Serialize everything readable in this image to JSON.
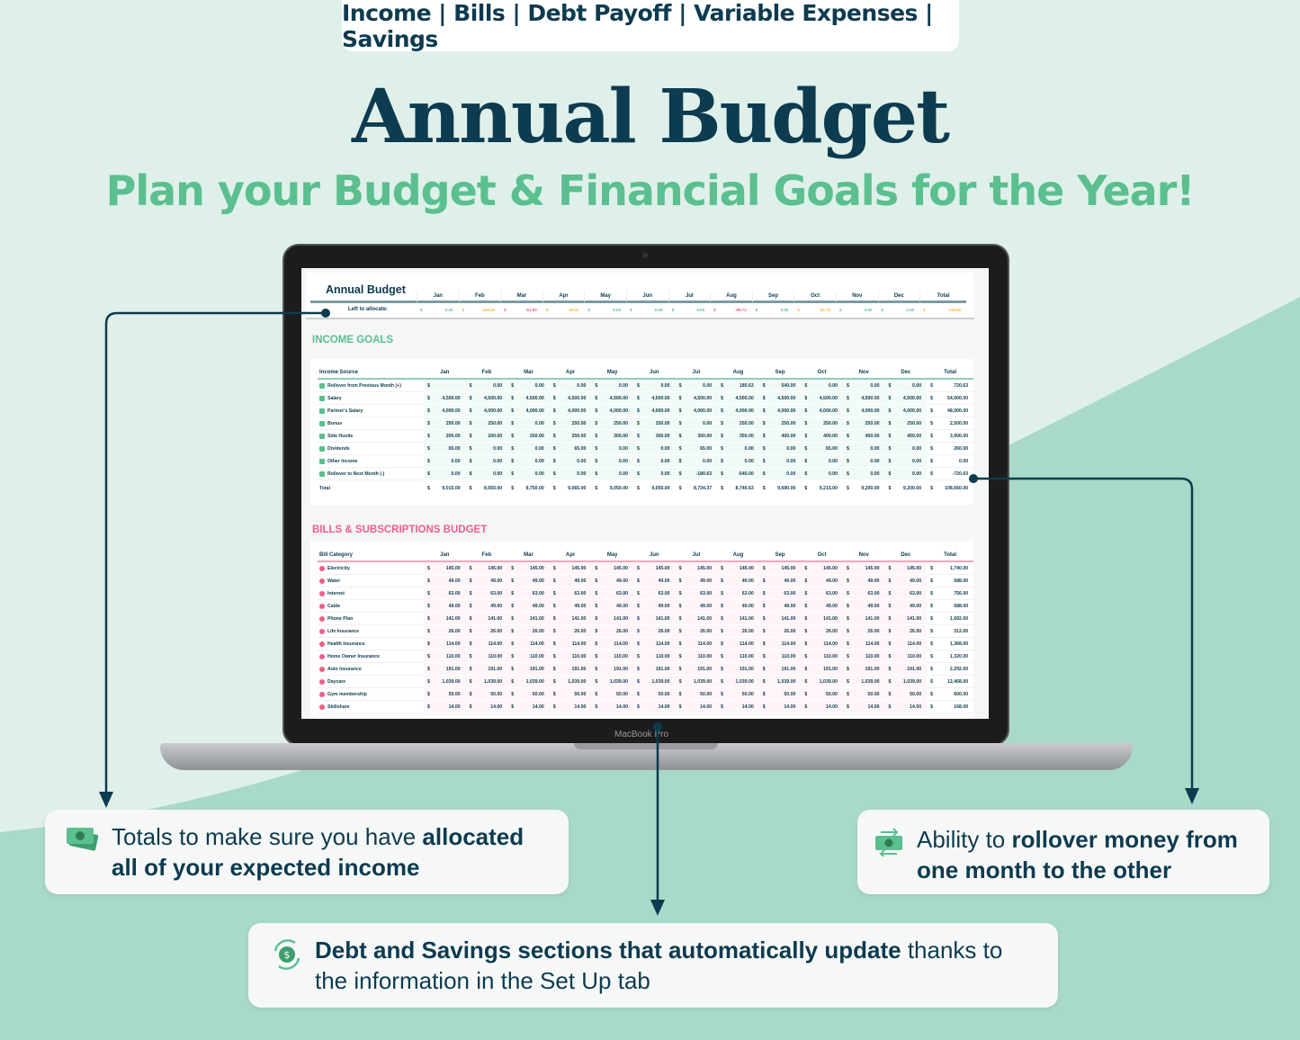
{
  "colors": {
    "navy": "#0d3b4f",
    "green": "#5bbf8f",
    "pink": "#ee5f86",
    "yellow": "#f2b632",
    "mint_bg": "#dff0ea",
    "mint_dark": "#a9d9c9"
  },
  "header": {
    "sections": "Income | Bills | Debt Payoff | Variable Expenses | Savings",
    "title": "Annual Budget",
    "subtitle": "Plan your Budget & Financial Goals for the Year!"
  },
  "laptop": {
    "brand": "MacBook Pro"
  },
  "sheet": {
    "title": "Annual Budget",
    "months": [
      "Jan",
      "Feb",
      "Mar",
      "Apr",
      "May",
      "Jun",
      "Jul",
      "Aug",
      "Sep",
      "Oct",
      "Nov",
      "Dec"
    ],
    "total_label": "Total",
    "currency": "$",
    "left_to_allocate": {
      "label": "Left to allocate:",
      "values": [
        "0.00",
        "194.20",
        "-51.80",
        "19.20",
        "0.00",
        "0.00",
        "0.00",
        "-89.74",
        "0.00",
        "62.74",
        "0.00",
        "0.00"
      ],
      "total": "134.60"
    },
    "income": {
      "heading": "INCOME GOALS",
      "col_label": "Income Source",
      "rows": [
        {
          "label": "Rollover from Previous Month (+)",
          "icon": "rollover-icon",
          "values": [
            "",
            "0.00",
            "0.00",
            "0.00",
            "0.00",
            "0.00",
            "0.00",
            "180.63",
            "540.00",
            "0.00",
            "0.00",
            "0.00"
          ],
          "total": "720.63"
        },
        {
          "label": "Salary",
          "icon": "briefcase-icon",
          "values": [
            "4,500.00",
            "4,500.00",
            "4,500.00",
            "4,500.00",
            "4,500.00",
            "4,500.00",
            "4,500.00",
            "4,500.00",
            "4,500.00",
            "4,500.00",
            "4,500.00",
            "4,500.00"
          ],
          "total": "54,000.00"
        },
        {
          "label": "Partner's Salary",
          "icon": "briefcase-icon",
          "values": [
            "4,000.00",
            "4,000.00",
            "4,000.00",
            "4,000.00",
            "4,000.00",
            "4,000.00",
            "4,000.00",
            "4,000.00",
            "4,000.00",
            "4,000.00",
            "4,000.00",
            "4,000.00"
          ],
          "total": "48,000.00"
        },
        {
          "label": "Bonus",
          "icon": "money-bag-icon",
          "values": [
            "250.00",
            "250.00",
            "0.00",
            "250.00",
            "250.00",
            "250.00",
            "0.00",
            "250.00",
            "250.00",
            "250.00",
            "250.00",
            "250.00"
          ],
          "total": "2,500.00"
        },
        {
          "label": "Side Hustle",
          "icon": "piggy-bank-icon",
          "values": [
            "200.00",
            "200.00",
            "250.00",
            "250.00",
            "300.00",
            "300.00",
            "350.00",
            "350.00",
            "400.00",
            "400.00",
            "450.00",
            "450.00"
          ],
          "total": "3,900.00"
        },
        {
          "label": "Dividends",
          "icon": "pie-chart-icon",
          "values": [
            "65.00",
            "0.00",
            "0.00",
            "65.00",
            "0.00",
            "0.00",
            "65.00",
            "0.00",
            "0.00",
            "65.00",
            "0.00",
            "0.00"
          ],
          "total": "260.00"
        },
        {
          "label": "Other Income",
          "icon": "cash-register-icon",
          "values": [
            "0.00",
            "0.00",
            "0.00",
            "0.00",
            "0.00",
            "0.00",
            "0.00",
            "0.00",
            "0.00",
            "0.00",
            "0.00",
            "0.00"
          ],
          "total": "0.00"
        },
        {
          "label": "Rollover to Next Month (-)",
          "icon": "rollover-icon",
          "values": [
            "0.00",
            "0.00",
            "0.00",
            "0.00",
            "0.00",
            "0.00",
            "-180.63",
            "-540.00",
            "0.00",
            "0.00",
            "0.00",
            "0.00"
          ],
          "total": "-720.63"
        }
      ],
      "total_row": {
        "label": "Total",
        "values": [
          "9,015.00",
          "8,950.00",
          "8,750.00",
          "9,065.00",
          "9,050.00",
          "9,050.00",
          "8,734.37",
          "8,740.63",
          "9,690.00",
          "9,215.00",
          "9,200.00",
          "9,200.00"
        ],
        "total": "108,660.00"
      }
    },
    "bills": {
      "heading": "BILLS & SUBSCRIPTIONS BUDGET",
      "col_label": "Bill Category",
      "rows": [
        {
          "label": "Electricity",
          "icon": "lightbulb-icon",
          "values": [
            "145.00",
            "145.00",
            "145.00",
            "145.00",
            "145.00",
            "145.00",
            "145.00",
            "145.00",
            "145.00",
            "145.00",
            "145.00",
            "145.00"
          ],
          "total": "1,740.00"
        },
        {
          "label": "Water",
          "icon": "water-drop-icon",
          "values": [
            "49.00",
            "49.00",
            "49.00",
            "49.00",
            "49.00",
            "49.00",
            "49.00",
            "49.00",
            "49.00",
            "49.00",
            "49.00",
            "49.00"
          ],
          "total": "588.00"
        },
        {
          "label": "Internet",
          "icon": "wifi-icon",
          "values": [
            "63.00",
            "63.00",
            "63.00",
            "63.00",
            "63.00",
            "63.00",
            "63.00",
            "63.00",
            "63.00",
            "63.00",
            "63.00",
            "63.00"
          ],
          "total": "756.00"
        },
        {
          "label": "Cable",
          "icon": "tv-icon",
          "values": [
            "49.00",
            "49.00",
            "49.00",
            "49.00",
            "49.00",
            "49.00",
            "49.00",
            "49.00",
            "49.00",
            "49.00",
            "49.00",
            "49.00"
          ],
          "total": "588.00"
        },
        {
          "label": "Phone Plan",
          "icon": "phone-icon",
          "values": [
            "141.00",
            "141.00",
            "141.00",
            "141.00",
            "141.00",
            "141.00",
            "141.00",
            "141.00",
            "141.00",
            "141.00",
            "141.00",
            "141.00"
          ],
          "total": "1,692.00"
        },
        {
          "label": "Life Insurance",
          "icon": "shield-icon",
          "values": [
            "26.00",
            "26.00",
            "26.00",
            "26.00",
            "26.00",
            "26.00",
            "26.00",
            "26.00",
            "26.00",
            "26.00",
            "26.00",
            "26.00"
          ],
          "total": "312.00"
        },
        {
          "label": "Health Insurance",
          "icon": "shield-icon",
          "values": [
            "114.00",
            "114.00",
            "114.00",
            "114.00",
            "114.00",
            "114.00",
            "114.00",
            "114.00",
            "114.00",
            "114.00",
            "114.00",
            "114.00"
          ],
          "total": "1,368.00"
        },
        {
          "label": "Home Owner Insurance",
          "icon": "shield-icon",
          "values": [
            "110.00",
            "110.00",
            "110.00",
            "110.00",
            "110.00",
            "110.00",
            "110.00",
            "110.00",
            "110.00",
            "110.00",
            "110.00",
            "110.00"
          ],
          "total": "1,320.00"
        },
        {
          "label": "Auto Insurance",
          "icon": "shield-icon",
          "values": [
            "191.00",
            "191.00",
            "191.00",
            "191.00",
            "191.00",
            "191.00",
            "191.00",
            "191.00",
            "191.00",
            "191.00",
            "191.00",
            "191.00"
          ],
          "total": "2,292.00"
        },
        {
          "label": "Daycare",
          "icon": "stroller-icon",
          "values": [
            "1,039.00",
            "1,039.00",
            "1,039.00",
            "1,039.00",
            "1,039.00",
            "1,039.00",
            "1,039.00",
            "1,039.00",
            "1,039.00",
            "1,039.00",
            "1,039.00",
            "1,039.00"
          ],
          "total": "12,468.00"
        },
        {
          "label": "Gym membership",
          "icon": "dumbbell-icon",
          "values": [
            "50.00",
            "50.00",
            "50.00",
            "50.00",
            "50.00",
            "50.00",
            "50.00",
            "50.00",
            "50.00",
            "50.00",
            "50.00",
            "50.00"
          ],
          "total": "600.00"
        },
        {
          "label": "Skillshare",
          "icon": "video-icon",
          "values": [
            "14.00",
            "14.00",
            "14.00",
            "14.00",
            "14.00",
            "14.00",
            "14.00",
            "14.00",
            "14.00",
            "14.00",
            "14.00",
            "14.00"
          ],
          "total": "168.00"
        }
      ]
    }
  },
  "callouts": {
    "allocated": {
      "icon": "cash-icon",
      "pre": "Totals to make sure you have ",
      "bold": "allocated all of your expected income"
    },
    "rollover": {
      "icon": "cash-exchange-icon",
      "pre": "Ability to ",
      "bold": "rollover money from one month to the other"
    },
    "debt": {
      "icon": "dollar-cycle-icon",
      "bold": "Debt and Savings sections that automatically update",
      "post": " thanks to the information in the Set Up tab"
    }
  }
}
